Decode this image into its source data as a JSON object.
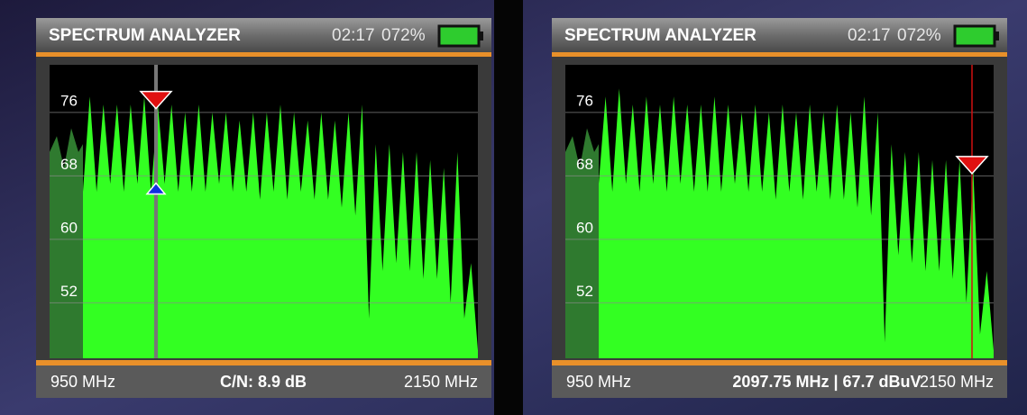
{
  "panels": [
    {
      "header": {
        "title": "SPECTRUM ANALYZER",
        "time": "02:17",
        "battery": "072%"
      },
      "footer": {
        "left": "950 MHz",
        "center": "C/N: 8.9 dB",
        "right": "2150 MHz"
      },
      "ylim": [
        45,
        82
      ],
      "yticks": [
        52,
        60,
        68,
        76
      ],
      "spectrum": [
        66,
        78,
        66,
        77,
        67,
        77,
        66,
        77,
        67,
        78,
        66,
        77,
        67,
        77,
        66,
        76,
        66,
        77,
        66,
        76,
        67,
        76,
        66,
        75,
        66,
        76,
        65,
        76,
        66,
        77,
        65,
        76,
        66,
        75,
        65,
        76,
        65,
        75,
        64,
        76,
        63,
        77,
        50,
        72,
        56,
        72,
        57,
        71,
        56,
        71,
        55,
        70,
        55,
        69,
        52,
        71,
        50,
        57,
        46
      ]
    },
    {
      "header": {
        "title": "SPECTRUM ANALYZER",
        "time": "02:17",
        "battery": "072%"
      },
      "footer": {
        "left": "950 MHz",
        "center": "2097.75 MHz | 67.7 dBuV",
        "right": "2150 MHz"
      },
      "ylim": [
        45,
        82
      ],
      "yticks": [
        52,
        60,
        68,
        76
      ],
      "spectrum": [
        67,
        78,
        66,
        79,
        67,
        77,
        66,
        78,
        67,
        77,
        66,
        78,
        67,
        77,
        66,
        77,
        66,
        78,
        66,
        77,
        67,
        76,
        66,
        77,
        66,
        76,
        65,
        77,
        66,
        76,
        65,
        77,
        66,
        76,
        65,
        77,
        65,
        76,
        64,
        78,
        63,
        76,
        47,
        72,
        58,
        71,
        57,
        71,
        56,
        70,
        56,
        70,
        55,
        70,
        52,
        69,
        48,
        56,
        46
      ]
    }
  ]
}
